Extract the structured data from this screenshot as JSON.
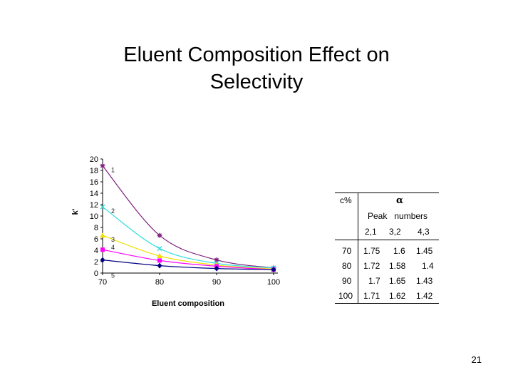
{
  "slide": {
    "title_line1": "Eluent Composition Effect on",
    "title_line2": "Selectivity",
    "page_number": "21"
  },
  "chart_data": {
    "type": "line",
    "xlabel": "Eluent composition",
    "ylabel": "k'",
    "x": [
      70,
      80,
      90,
      100
    ],
    "xlim": [
      70,
      100
    ],
    "ylim": [
      0,
      20
    ],
    "x_ticks": [
      "70",
      "80",
      "90",
      "100"
    ],
    "y_ticks": [
      "0",
      "2",
      "4",
      "6",
      "8",
      "10",
      "12",
      "14",
      "16",
      "18",
      "20"
    ],
    "grid": false,
    "series": [
      {
        "name": "1",
        "color": "#7b1f7b",
        "marker": "star",
        "values": [
          18.8,
          6.6,
          2.3,
          0.9
        ]
      },
      {
        "name": "2",
        "color": "#33dddd",
        "marker": "x",
        "values": [
          11.6,
          4.3,
          1.7,
          0.9
        ]
      },
      {
        "name": "3",
        "color": "#f0e000",
        "marker": "triangle",
        "values": [
          6.6,
          3.0,
          1.4,
          0.7
        ]
      },
      {
        "name": "4",
        "color": "#ff00ff",
        "marker": "square",
        "values": [
          4.1,
          2.2,
          1.2,
          0.6
        ]
      },
      {
        "name": "5",
        "color": "#000080",
        "marker": "diamond",
        "values": [
          2.3,
          1.3,
          0.8,
          0.6
        ]
      }
    ],
    "curve_labels": [
      "1",
      "2",
      "3",
      "4",
      "5"
    ]
  },
  "table": {
    "header_col": "c%",
    "header_alpha": "α",
    "peak_numbers_label": "Peak   numbers",
    "pairs": [
      "2,1",
      "3,2",
      "4,3"
    ],
    "rows": [
      {
        "c": "70",
        "values": [
          "1.75",
          "1.6",
          "1.45"
        ]
      },
      {
        "c": "80",
        "values": [
          "1.72",
          "1.58",
          "1.4"
        ]
      },
      {
        "c": "90",
        "values": [
          "1.7",
          "1.65",
          "1.43"
        ]
      },
      {
        "c": "100",
        "values": [
          "1.71",
          "1.62",
          "1.42"
        ]
      }
    ]
  }
}
